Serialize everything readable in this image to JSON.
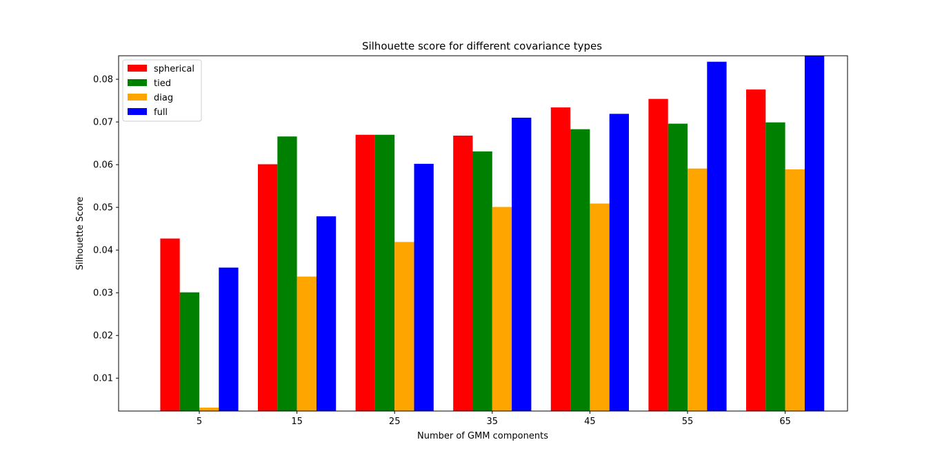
{
  "chart_data": {
    "type": "bar",
    "title": "Silhouette score for different covariance types",
    "xlabel": "Number of GMM components",
    "ylabel": "Silhouette Score",
    "categories": [
      "5",
      "15",
      "25",
      "35",
      "45",
      "55",
      "65"
    ],
    "ylim": [
      0.0023,
      0.0855
    ],
    "yticks": [
      "0.01",
      "0.02",
      "0.03",
      "0.04",
      "0.05",
      "0.06",
      "0.07",
      "0.08"
    ],
    "ytick_values": [
      0.01,
      0.02,
      0.03,
      0.04,
      0.05,
      0.06,
      0.07,
      0.08
    ],
    "grid": false,
    "legend_position": "top-left",
    "series": [
      {
        "name": "spherical",
        "color": "#ff0000",
        "values": [
          0.0427,
          0.0601,
          0.067,
          0.0668,
          0.0734,
          0.0754,
          0.0776
        ]
      },
      {
        "name": "tied",
        "color": "#008000",
        "values": [
          0.0301,
          0.0666,
          0.067,
          0.0631,
          0.0683,
          0.0696,
          0.0699
        ]
      },
      {
        "name": "diag",
        "color": "#ffa500",
        "values": [
          0.0031,
          0.0338,
          0.0419,
          0.0501,
          0.0509,
          0.0591,
          0.0589
        ]
      },
      {
        "name": "full",
        "color": "#0000ff",
        "values": [
          0.0359,
          0.0479,
          0.0602,
          0.071,
          0.0719,
          0.0841,
          0.0855
        ]
      }
    ]
  }
}
